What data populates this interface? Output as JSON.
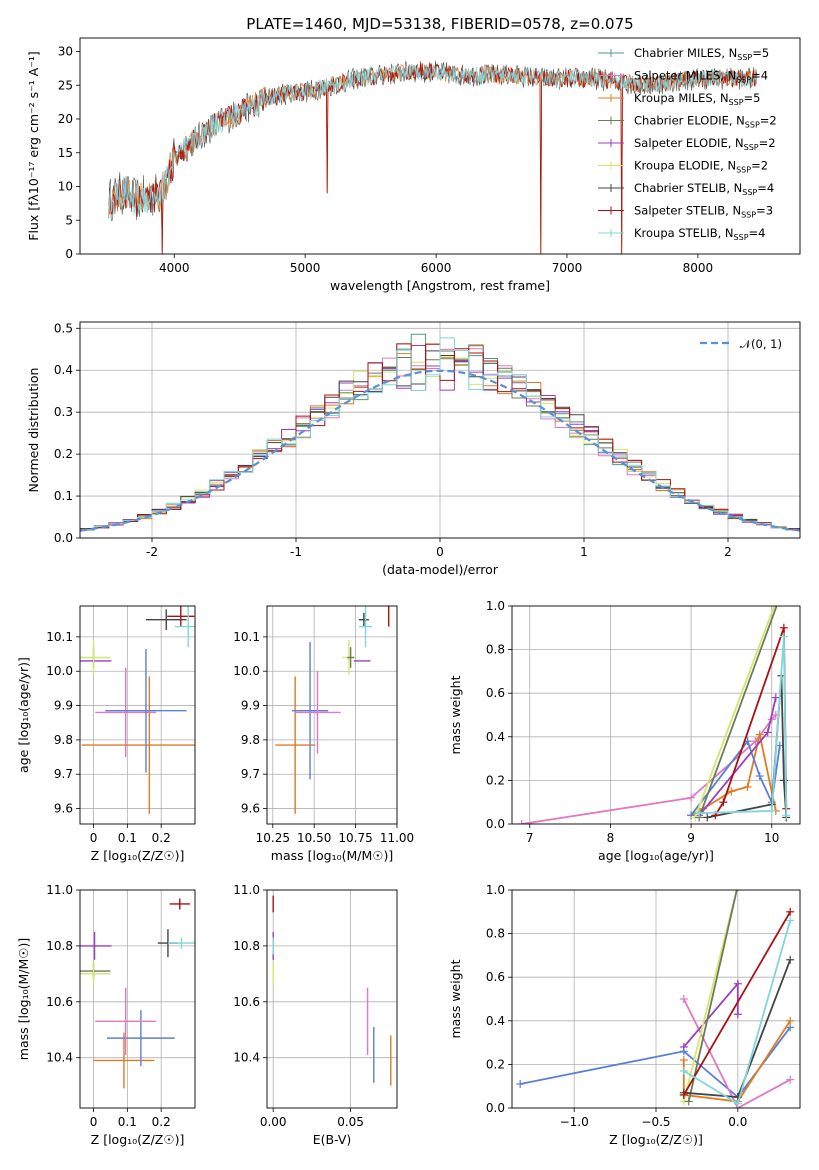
{
  "figure": {
    "title": "PLATE=1460, MJD=53138, FIBERID=0578, z=0.075"
  },
  "colors": {
    "Chabrier MILES": "#4c9b7f",
    "Salpeter MILES": "#e377c2",
    "Kroupa MILES": "#e07b22",
    "Chabrier ELODIE": "#6b7b5b",
    "Salpeter ELODIE": "#9b3fbf",
    "Kroupa ELODIE": "#d4e66b",
    "Chabrier STELIB": "#444444",
    "Salpeter STELIB": "#aa1111",
    "Kroupa STELIB": "#7fd6dc",
    "blue": "#5b7fd6",
    "gauss": "#5b8fd9",
    "grid": "#b0b0b0"
  },
  "legend": [
    {
      "name": "Chabrier MILES",
      "label": "Chabrier MILES, N",
      "n": "5"
    },
    {
      "name": "Salpeter MILES",
      "label": "Salpeter MILES, N",
      "n": "4"
    },
    {
      "name": "Kroupa MILES",
      "label": "Kroupa MILES, N",
      "n": "5"
    },
    {
      "name": "Chabrier ELODIE",
      "label": "Chabrier ELODIE, N",
      "n": "2"
    },
    {
      "name": "Salpeter ELODIE",
      "label": "Salpeter ELODIE, N",
      "n": "2"
    },
    {
      "name": "Kroupa ELODIE",
      "label": "Kroupa ELODIE, N",
      "n": "2"
    },
    {
      "name": "Chabrier STELIB",
      "label": "Chabrier STELIB, N",
      "n": "4"
    },
    {
      "name": "Salpeter STELIB",
      "label": "Salpeter STELIB, N",
      "n": "3"
    },
    {
      "name": "Kroupa STELIB",
      "label": "Kroupa STELIB, N",
      "n": "4"
    }
  ],
  "chart_data": [
    {
      "id": "spectrum",
      "type": "line",
      "xlabel": "wavelength [Angstrom, rest frame]",
      "ylabel": "Flux [fλ10⁻¹⁷ erg cm⁻² s⁻¹ A⁻¹]",
      "xlim": [
        3280,
        8780
      ],
      "ylim": [
        0,
        32
      ],
      "xticks": [
        4000,
        5000,
        6000,
        7000,
        8000
      ],
      "yticks": [
        0,
        5,
        10,
        15,
        20,
        25,
        30
      ],
      "profile_x": [
        3500,
        3600,
        3700,
        3800,
        3900,
        4000,
        4100,
        4200,
        4300,
        4400,
        4500,
        4600,
        4700,
        4800,
        4900,
        5000,
        5200,
        5400,
        5600,
        5800,
        6000,
        6200,
        6400,
        6600,
        6800,
        7000,
        7200,
        7400,
        7600,
        7800,
        8000,
        8200,
        8400
      ],
      "profile_y": [
        8,
        9,
        8,
        8.5,
        9,
        14,
        16,
        17.5,
        19,
        20,
        21,
        22,
        23,
        23.5,
        24,
        24,
        25,
        26,
        26.5,
        27,
        27,
        26.5,
        26.5,
        26.5,
        26,
        26,
        26,
        25.5,
        25,
        25.5,
        26,
        26,
        26
      ],
      "dips": [
        {
          "x": 3910,
          "to": 0
        },
        {
          "x": 6800,
          "to": 0
        },
        {
          "x": 7420,
          "to": 0
        },
        {
          "x": 5170,
          "to": 9
        }
      ],
      "grid": false,
      "legend_position": "upper right"
    },
    {
      "id": "residuals",
      "type": "histogram",
      "xlabel": "(data-model)/error",
      "ylabel": "Normed distribution",
      "xlim": [
        -2.5,
        2.5
      ],
      "ylim": [
        0,
        0.515
      ],
      "xticks": [
        -2,
        -1,
        0,
        1,
        2
      ],
      "yticks": [
        0.0,
        0.1,
        0.2,
        0.3,
        0.4,
        0.5
      ],
      "bin_width": 0.1,
      "series_model": "N(0,1) with small scatter",
      "gaussian_label": "𝒩(0, 1)",
      "grid": true,
      "legend_position": "upper right"
    },
    {
      "id": "age-vs-Z",
      "type": "errorbar",
      "xlabel": "Z [log₁₀(Z/Z☉)]",
      "ylabel": "age  [log₁₀(age/yr)]",
      "xlim": [
        -0.04,
        0.3
      ],
      "ylim": [
        9.555,
        10.19
      ],
      "xticks": [
        0.0,
        0.1,
        0.2
      ],
      "yticks": [
        9.6,
        9.7,
        9.8,
        9.9,
        10.0,
        10.1
      ],
      "points": [
        {
          "s": "Chabrier MILES",
          "x": 0.0,
          "y": 10.03,
          "xe": 0.0,
          "ye": 0.0
        },
        {
          "s": "Salpeter MILES",
          "x": 0.095,
          "y": 9.88,
          "xe": 0.09,
          "ye": 0.13
        },
        {
          "s": "Kroupa MILES",
          "x": 0.165,
          "y": 9.785,
          "xe": 0.2,
          "ye": 0.2
        },
        {
          "s": "blue",
          "x": 0.155,
          "y": 9.885,
          "xe": 0.12,
          "ye": 0.18
        },
        {
          "s": "Chabrier ELODIE",
          "x": 0.0,
          "y": 10.04,
          "xe": 0.0,
          "ye": 0.03
        },
        {
          "s": "Salpeter ELODIE",
          "x": 0.003,
          "y": 10.03,
          "xe": 0.05,
          "ye": 0.0
        },
        {
          "s": "Kroupa ELODIE",
          "x": 0.0,
          "y": 10.04,
          "xe": 0.05,
          "ye": 0.05
        },
        {
          "s": "Chabrier STELIB",
          "x": 0.215,
          "y": 10.15,
          "xe": 0.06,
          "ye": 0.03
        },
        {
          "s": "Salpeter STELIB",
          "x": 0.258,
          "y": 10.16,
          "xe": 0.04,
          "ye": 0.03
        },
        {
          "s": "Kroupa STELIB",
          "x": 0.28,
          "y": 10.13,
          "xe": 0.04,
          "ye": 0.06
        }
      ],
      "grid": true
    },
    {
      "id": "age-vs-mass",
      "type": "errorbar",
      "xlabel": "mass [log₁₀(M/M☉)]",
      "ylabel": "",
      "xlim": [
        10.215,
        11.0
      ],
      "ylim": [
        9.555,
        10.19
      ],
      "xticks": [
        10.25,
        10.5,
        10.75,
        11.0
      ],
      "xticklabels": [
        "10.25",
        "10.50",
        "10.75",
        "11.00"
      ],
      "yticks": [
        9.6,
        9.7,
        9.8,
        9.9,
        10.0,
        10.1
      ],
      "points": [
        {
          "s": "Kroupa MILES",
          "x": 10.385,
          "y": 9.785,
          "xe": 0.12,
          "ye": 0.2
        },
        {
          "s": "blue",
          "x": 10.475,
          "y": 9.885,
          "xe": 0.11,
          "ye": 0.2
        },
        {
          "s": "Salpeter MILES",
          "x": 10.52,
          "y": 9.88,
          "xe": 0.14,
          "ye": 0.12
        },
        {
          "s": "Kroupa ELODIE",
          "x": 10.71,
          "y": 10.04,
          "xe": 0.04,
          "ye": 0.05
        },
        {
          "s": "Chabrier ELODIE",
          "x": 10.72,
          "y": 10.04,
          "xe": 0.02,
          "ye": 0.03
        },
        {
          "s": "Salpeter ELODIE",
          "x": 10.79,
          "y": 10.03,
          "xe": 0.05,
          "ye": 0.0
        },
        {
          "s": "Chabrier STELIB",
          "x": 10.8,
          "y": 10.15,
          "xe": 0.03,
          "ye": 0.02
        },
        {
          "s": "Kroupa STELIB",
          "x": 10.81,
          "y": 10.13,
          "xe": 0.04,
          "ye": 0.06
        },
        {
          "s": "Salpeter STELIB",
          "x": 10.95,
          "y": 10.16,
          "xe": 0.0,
          "ye": 0.03
        }
      ],
      "grid": true
    },
    {
      "id": "weight-vs-age",
      "type": "line",
      "xlabel": "age  [log₁₀(age/yr)]",
      "ylabel": "mass weight",
      "xlim": [
        6.78,
        10.35
      ],
      "ylim": [
        0,
        1.0
      ],
      "xticks": [
        7,
        8,
        9,
        10
      ],
      "yticks": [
        0.0,
        0.2,
        0.4,
        0.6,
        0.8,
        1.0
      ],
      "series": [
        {
          "s": "Salpeter MILES",
          "x": [
            6.9,
            9.0,
            9.8,
            10.0,
            10.05
          ],
          "y": [
            0.0,
            0.12,
            0.38,
            0.48,
            0.5
          ]
        },
        {
          "s": "Kroupa MILES",
          "x": [
            9.0,
            9.15,
            9.5,
            9.7,
            9.85,
            10.05
          ],
          "y": [
            0.04,
            0.07,
            0.15,
            0.17,
            0.41,
            0.06
          ]
        },
        {
          "s": "blue",
          "x": [
            9.0,
            9.7,
            9.85,
            10.0,
            10.1
          ],
          "y": [
            0.04,
            0.38,
            0.22,
            0.1,
            0.36
          ]
        },
        {
          "s": "Salpeter ELODIE",
          "x": [
            9.1,
            9.95,
            10.05
          ],
          "y": [
            0.04,
            0.42,
            0.58
          ]
        },
        {
          "s": "Kroupa ELODIE",
          "x": [
            9.05,
            10.05
          ],
          "y": [
            0.03,
            1.02
          ]
        },
        {
          "s": "Chabrier ELODIE",
          "x": [
            9.1,
            10.08
          ],
          "y": [
            0.03,
            1.02
          ]
        },
        {
          "s": "Chabrier STELIB",
          "x": [
            9.2,
            10.0,
            10.12,
            10.15,
            10.18
          ],
          "y": [
            0.03,
            0.09,
            0.68,
            0.2,
            0.03
          ]
        },
        {
          "s": "Salpeter STELIB",
          "x": [
            9.3,
            9.4,
            10.15,
            10.18
          ],
          "y": [
            0.04,
            0.1,
            0.9,
            0.07
          ]
        },
        {
          "s": "Kroupa STELIB",
          "x": [
            9.1,
            10.0,
            10.15,
            10.18
          ],
          "y": [
            0.05,
            0.06,
            0.86,
            0.04
          ]
        }
      ],
      "grid": true
    },
    {
      "id": "mass-vs-Z",
      "type": "errorbar",
      "xlabel": "Z [log₁₀(Z/Z☉)]",
      "ylabel": "mass [log₁₀(M/M☉)]",
      "xlim": [
        -0.04,
        0.3
      ],
      "ylim": [
        10.22,
        11.0
      ],
      "xticks": [
        0.0,
        0.1,
        0.2
      ],
      "yticks": [
        10.4,
        10.6,
        10.8,
        11.0
      ],
      "points": [
        {
          "s": "Kroupa MILES",
          "x": 0.09,
          "y": 10.39,
          "xe": 0.09,
          "ye": 0.1
        },
        {
          "s": "blue",
          "x": 0.14,
          "y": 10.47,
          "xe": 0.1,
          "ye": 0.1
        },
        {
          "s": "Salpeter MILES",
          "x": 0.095,
          "y": 10.53,
          "xe": 0.09,
          "ye": 0.12
        },
        {
          "s": "Chabrier ELODIE",
          "x": 0.0,
          "y": 10.71,
          "xe": 0.05,
          "ye": 0.03
        },
        {
          "s": "Kroupa ELODIE",
          "x": 0.0,
          "y": 10.7,
          "xe": 0.05,
          "ye": 0.04
        },
        {
          "s": "Salpeter ELODIE",
          "x": 0.003,
          "y": 10.8,
          "xe": 0.05,
          "ye": 0.05
        },
        {
          "s": "Chabrier STELIB",
          "x": 0.22,
          "y": 10.81,
          "xe": 0.03,
          "ye": 0.05
        },
        {
          "s": "Kroupa STELIB",
          "x": 0.26,
          "y": 10.81,
          "xe": 0.04,
          "ye": 0.02
        },
        {
          "s": "Salpeter STELIB",
          "x": 0.255,
          "y": 10.95,
          "xe": 0.03,
          "ye": 0.02
        }
      ],
      "grid": true
    },
    {
      "id": "mass-vs-EBV",
      "type": "errorbar",
      "xlabel": "E(B-V)",
      "ylabel": "",
      "xlim": [
        -0.004,
        0.08
      ],
      "ylim": [
        10.22,
        11.0
      ],
      "xticks": [
        0.0,
        0.05
      ],
      "xticklabels": [
        "0.00",
        "0.05"
      ],
      "yticks": [
        10.4,
        10.6,
        10.8,
        11.0
      ],
      "points": [
        {
          "s": "Salpeter STELIB",
          "x": 0.0,
          "y": 10.95,
          "xe": 0.0,
          "ye": 0.03
        },
        {
          "s": "Salpeter ELODIE",
          "x": 0.0,
          "y": 10.8,
          "xe": 0.0,
          "ye": 0.05
        },
        {
          "s": "Kroupa STELIB",
          "x": 0.0,
          "y": 10.8,
          "xe": 0.0,
          "ye": 0.03
        },
        {
          "s": "Kroupa ELODIE",
          "x": 0.0,
          "y": 10.7,
          "xe": 0.0,
          "ye": 0.04
        },
        {
          "s": "Salpeter MILES",
          "x": 0.061,
          "y": 10.53,
          "xe": 0.0,
          "ye": 0.12
        },
        {
          "s": "blue",
          "x": 0.065,
          "y": 10.41,
          "xe": 0.0,
          "ye": 0.1
        },
        {
          "s": "Kroupa MILES",
          "x": 0.076,
          "y": 10.39,
          "xe": 0.0,
          "ye": 0.09
        }
      ],
      "grid": true
    },
    {
      "id": "weight-vs-Z",
      "type": "line",
      "xlabel": "Z [log₁₀(Z/Z☉)]",
      "ylabel": "mass weight",
      "xlim": [
        -1.38,
        0.38
      ],
      "ylim": [
        0,
        1.0
      ],
      "xticks": [
        -1.0,
        -0.5,
        0.0
      ],
      "xticklabels": [
        "−1.0",
        "−0.5",
        "0.0"
      ],
      "yticks": [
        0.0,
        0.2,
        0.4,
        0.6,
        0.8,
        1.0
      ],
      "series": [
        {
          "s": "blue",
          "x": [
            -1.33,
            -0.33,
            0.0,
            0.32
          ],
          "y": [
            0.11,
            0.26,
            0.05,
            0.37
          ]
        },
        {
          "s": "Salpeter MILES",
          "x": [
            -0.33,
            0.0,
            0.32
          ],
          "y": [
            0.5,
            0.0,
            0.13
          ]
        },
        {
          "s": "Kroupa MILES",
          "x": [
            -0.33,
            -0.33,
            0.0,
            0.32
          ],
          "y": [
            0.22,
            0.06,
            0.03,
            0.4
          ]
        },
        {
          "s": "Salpeter ELODIE",
          "x": [
            -0.33,
            0.0,
            0.0
          ],
          "y": [
            0.28,
            0.57,
            0.43
          ]
        },
        {
          "s": "Kroupa ELODIE",
          "x": [
            -0.33,
            0.0
          ],
          "y": [
            0.03,
            1.02
          ]
        },
        {
          "s": "Chabrier ELODIE",
          "x": [
            -0.3,
            0.0
          ],
          "y": [
            0.03,
            1.02
          ]
        },
        {
          "s": "Chabrier STELIB",
          "x": [
            -0.33,
            0.0,
            0.32
          ],
          "y": [
            0.07,
            0.05,
            0.68
          ]
        },
        {
          "s": "Salpeter STELIB",
          "x": [
            -0.33,
            0.32
          ],
          "y": [
            0.06,
            0.9
          ]
        },
        {
          "s": "Kroupa STELIB",
          "x": [
            -0.33,
            0.0,
            0.32
          ],
          "y": [
            0.17,
            0.02,
            0.86
          ]
        }
      ],
      "grid": true
    }
  ]
}
